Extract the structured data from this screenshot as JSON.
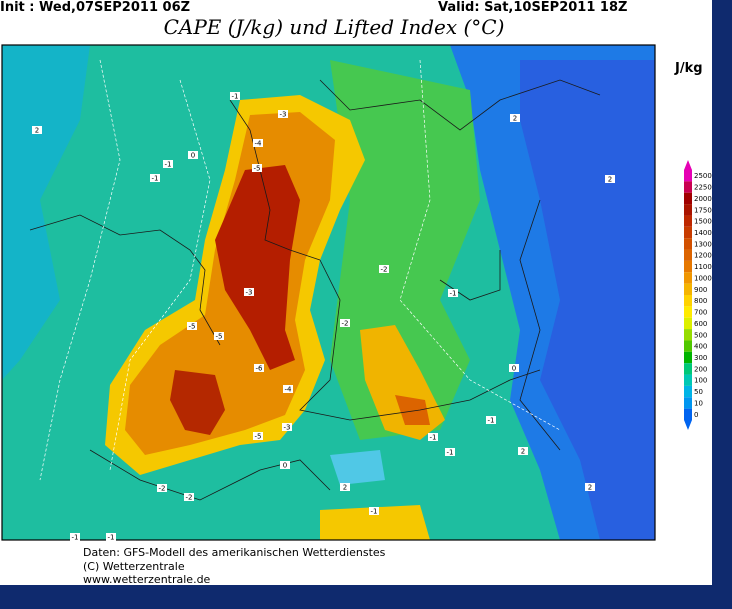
{
  "header": {
    "init": "Init : Wed,07SEP2011 06Z",
    "valid": "Valid: Sat,10SEP2011 18Z",
    "title": "CAPE (J/kg) und Lifted Index (°C)"
  },
  "colorbar": {
    "unit": "J/kg",
    "levels": [
      2500,
      2250,
      2000,
      1750,
      1500,
      1400,
      1300,
      1200,
      1100,
      1000,
      900,
      800,
      700,
      600,
      500,
      400,
      300,
      200,
      100,
      50,
      10,
      0
    ],
    "colors": [
      "#e600b4",
      "#c80050",
      "#a00000",
      "#aa1400",
      "#be2800",
      "#c83c00",
      "#d25000",
      "#dc6400",
      "#e67800",
      "#f09600",
      "#f5b400",
      "#ffd200",
      "#ffeb00",
      "#dcf000",
      "#96dc00",
      "#50c800",
      "#00b400",
      "#00c878",
      "#00c8b4",
      "#00b4e6",
      "#0096f0",
      "#0064f0"
    ]
  },
  "contour_labels": [
    "-1",
    "-3",
    "-4",
    "-5",
    "-1",
    "-1",
    "0",
    "2",
    "-2",
    "-3",
    "-2",
    "-5",
    "-5",
    "-6",
    "-4",
    "-3",
    "-5",
    "-1",
    "0",
    "-1",
    "-1",
    "2",
    "-1",
    "0",
    "-2",
    "-2",
    "2",
    "-1",
    "2",
    "2",
    "2",
    "-1",
    "-1"
  ],
  "footer": [
    "Daten: GFS-Modell des amerikanischen Wetterdienstes",
    "(C) Wetterzentrale",
    "www.wetterzentrale.de"
  ]
}
